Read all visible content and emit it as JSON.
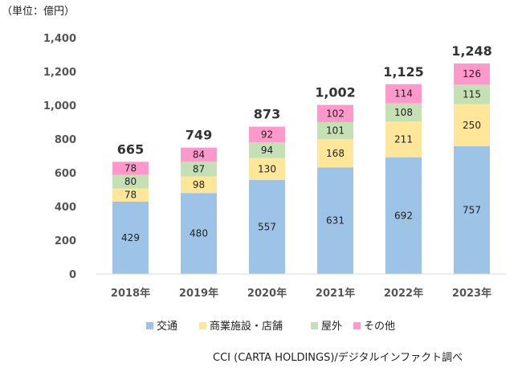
{
  "chart_data": {
    "type": "bar",
    "stacked": true,
    "unit_label": "（単位：億円）",
    "categories": [
      "2018年",
      "2019年",
      "2020年",
      "2021年",
      "2022年",
      "2023年"
    ],
    "series": [
      {
        "name": "交通",
        "color": "#9dc3e6",
        "values": [
          429,
          480,
          557,
          631,
          692,
          757
        ]
      },
      {
        "name": "商業施設・店舗",
        "color": "#ffe699",
        "values": [
          78,
          98,
          130,
          168,
          211,
          250
        ]
      },
      {
        "name": "屋外",
        "color": "#c5e0b4",
        "values": [
          80,
          87,
          94,
          101,
          108,
          115
        ]
      },
      {
        "name": "その他",
        "color": "#ff99cc",
        "values": [
          78,
          84,
          92,
          102,
          114,
          126
        ]
      }
    ],
    "totals": [
      "665",
      "749",
      "873",
      "1,002",
      "1,125",
      "1,248"
    ],
    "ylim": [
      0,
      1400
    ],
    "yticks": [
      "0",
      "200",
      "400",
      "600",
      "800",
      "1,000",
      "1,200",
      "1,400"
    ],
    "grid": false,
    "legend_position": "bottom"
  },
  "source": "CCI (CARTA HOLDINGS)/デジタルインファクト調べ"
}
